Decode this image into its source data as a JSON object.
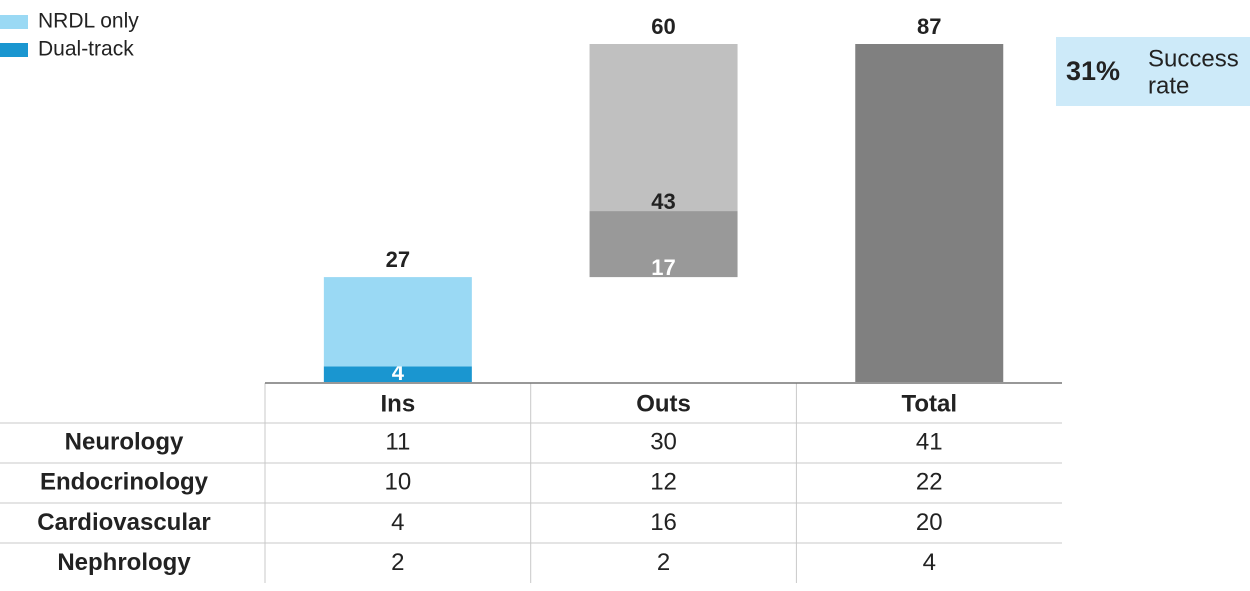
{
  "chart_data": {
    "type": "waterfall",
    "categories": [
      "Ins",
      "Outs",
      "Total"
    ],
    "kinds": [
      "step",
      "step",
      "total"
    ],
    "totals": [
      27,
      60,
      87
    ],
    "segments": [
      [
        {
          "value": 4,
          "color": "#1a96d0",
          "labeled": true,
          "label_color": "#ffffff"
        },
        {
          "value": 23,
          "color": "#9ad9f4",
          "labeled": false,
          "label_color": "#222222"
        }
      ],
      [
        {
          "value": 17,
          "color": "#999999",
          "labeled": true,
          "label_color": "#ffffff"
        },
        {
          "value": 43,
          "color": "#c0c0c0",
          "labeled": true,
          "label_color": "#222222"
        }
      ],
      [
        {
          "value": 87,
          "color": "#808080",
          "labeled": false,
          "label_color": "#ffffff"
        }
      ]
    ],
    "legend": [
      {
        "name": "NRDL only",
        "color": "#9ad9f4"
      },
      {
        "name": "Dual-track",
        "color": "#1a96d0"
      }
    ],
    "callout": {
      "value": "31%",
      "text_lines": [
        "Success",
        "rate"
      ],
      "color": "#cdeaf9"
    },
    "table": {
      "rows": [
        {
          "label": "Neurology",
          "values": [
            11,
            30,
            41
          ]
        },
        {
          "label": "Endocrinology",
          "values": [
            10,
            12,
            22
          ]
        },
        {
          "label": "Cardiovascular",
          "values": [
            4,
            16,
            20
          ]
        },
        {
          "label": "Nephrology",
          "values": [
            2,
            2,
            4
          ]
        }
      ]
    }
  }
}
